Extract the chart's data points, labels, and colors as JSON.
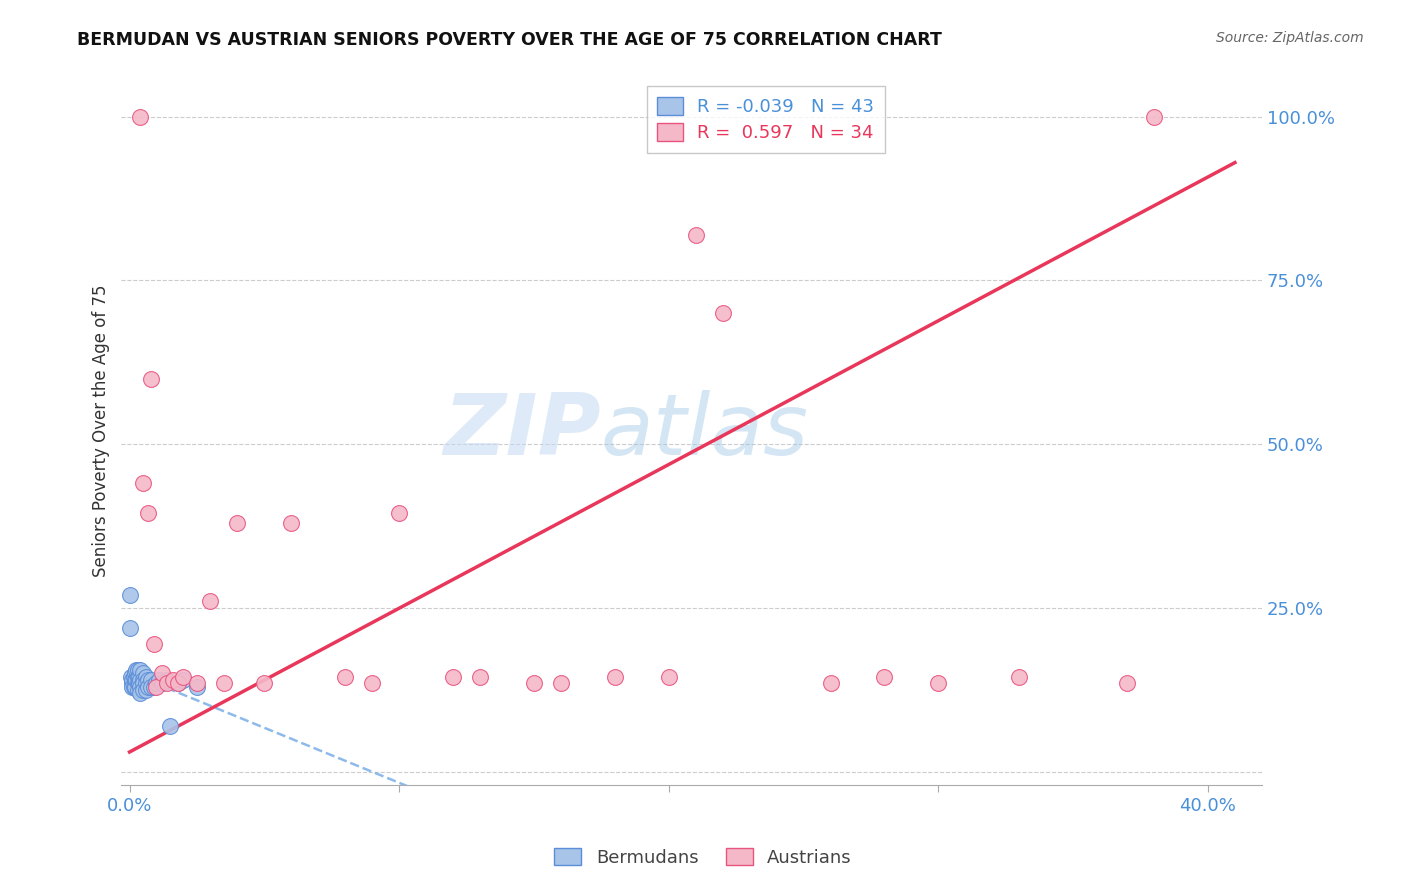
{
  "title": "BERMUDAN VS AUSTRIAN SENIORS POVERTY OVER THE AGE OF 75 CORRELATION CHART",
  "source": "Source: ZipAtlas.com",
  "ylabel": "Seniors Poverty Over the Age of 75",
  "watermark_zip": "ZIP",
  "watermark_atlas": "atlas",
  "xlim": [
    -0.003,
    0.42
  ],
  "ylim": [
    -0.02,
    1.06
  ],
  "blue_R": -0.039,
  "blue_N": 43,
  "pink_R": 0.597,
  "pink_N": 34,
  "blue_color": "#a8c4e8",
  "pink_color": "#f5b8c8",
  "blue_edge_color": "#5b8dd9",
  "pink_edge_color": "#e85480",
  "blue_trend_color": "#7aaee8",
  "pink_trend_color": "#e8375a",
  "blue_x": [
    0.0,
    0.0,
    0.0005,
    0.0008,
    0.001,
    0.001,
    0.0015,
    0.0015,
    0.002,
    0.002,
    0.002,
    0.0025,
    0.0025,
    0.003,
    0.003,
    0.003,
    0.003,
    0.0035,
    0.0035,
    0.004,
    0.004,
    0.004,
    0.004,
    0.005,
    0.005,
    0.005,
    0.005,
    0.006,
    0.006,
    0.006,
    0.007,
    0.007,
    0.008,
    0.008,
    0.009,
    0.01,
    0.011,
    0.012,
    0.014,
    0.015,
    0.018,
    0.02,
    0.025
  ],
  "blue_y": [
    0.27,
    0.22,
    0.145,
    0.135,
    0.14,
    0.13,
    0.145,
    0.13,
    0.15,
    0.14,
    0.13,
    0.155,
    0.14,
    0.155,
    0.145,
    0.135,
    0.125,
    0.145,
    0.135,
    0.155,
    0.14,
    0.13,
    0.12,
    0.15,
    0.14,
    0.135,
    0.125,
    0.145,
    0.135,
    0.125,
    0.14,
    0.13,
    0.14,
    0.13,
    0.13,
    0.135,
    0.14,
    0.135,
    0.14,
    0.07,
    0.135,
    0.14,
    0.13
  ],
  "pink_x": [
    0.004,
    0.005,
    0.007,
    0.008,
    0.009,
    0.01,
    0.012,
    0.014,
    0.016,
    0.018,
    0.02,
    0.025,
    0.03,
    0.035,
    0.04,
    0.05,
    0.06,
    0.08,
    0.09,
    0.1,
    0.12,
    0.13,
    0.15,
    0.16,
    0.18,
    0.2,
    0.21,
    0.22,
    0.26,
    0.28,
    0.3,
    0.33,
    0.37,
    0.38
  ],
  "pink_y": [
    1.0,
    0.44,
    0.395,
    0.6,
    0.195,
    0.13,
    0.15,
    0.135,
    0.14,
    0.135,
    0.145,
    0.135,
    0.26,
    0.135,
    0.38,
    0.135,
    0.38,
    0.145,
    0.135,
    0.395,
    0.145,
    0.145,
    0.135,
    0.135,
    0.145,
    0.145,
    0.82,
    0.7,
    0.135,
    0.145,
    0.135,
    0.145,
    0.135,
    1.0
  ],
  "pink_x2": [
    0.38
  ],
  "pink_y2": [
    1.0
  ],
  "figsize": [
    14.06,
    8.92
  ],
  "dpi": 100,
  "grid_color": "#cccccc",
  "background_color": "#ffffff",
  "tick_color": "#4a90d9",
  "label_color": "#333333"
}
